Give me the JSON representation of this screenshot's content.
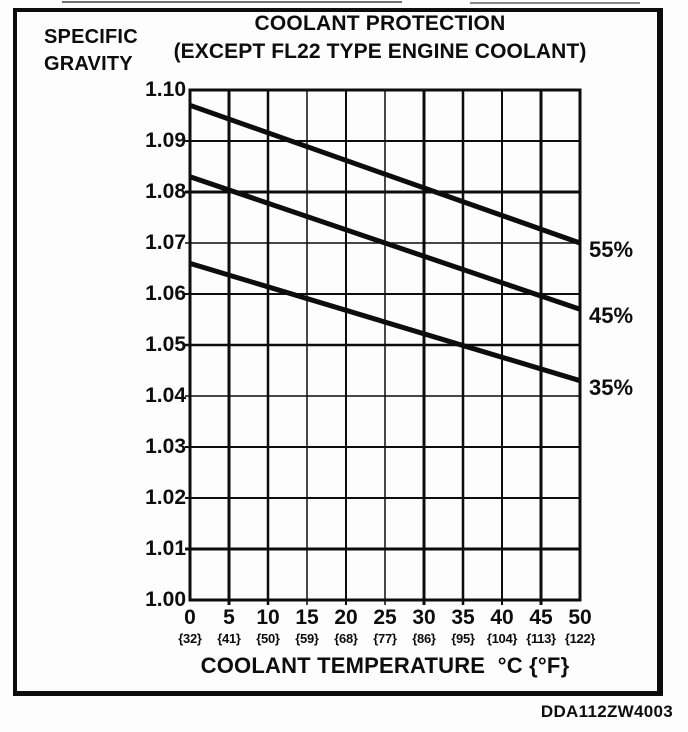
{
  "chart_data": {
    "type": "line",
    "title": "COOLANT PROTECTION",
    "subtitle": "(EXCEPT FL22 TYPE ENGINE COOLANT)",
    "ylabel": "SPECIFIC GRAVITY",
    "xlabel": "COOLANT TEMPERATURE  °C {°F}",
    "xlim": [
      0,
      50
    ],
    "ylim": [
      1.0,
      1.1
    ],
    "grid": true,
    "legend_position": "right-of-line-ends",
    "x_ticks_celsius": [
      0,
      5,
      10,
      15,
      20,
      25,
      30,
      35,
      40,
      45,
      50
    ],
    "x_ticks_fahrenheit": [
      "{32}",
      "{41}",
      "{50}",
      "{59}",
      "{68}",
      "{77}",
      "{86}",
      "{95}",
      "{104}",
      "{113}",
      "{122}"
    ],
    "y_ticks": [
      "1.10",
      "1.09",
      "1.08",
      "1.07",
      "1.06",
      "1.05",
      "1.04",
      "1.03",
      "1.02",
      "1.01",
      "1.00"
    ],
    "series": [
      {
        "name": "55%",
        "points": [
          [
            0,
            1.097
          ],
          [
            50,
            1.07
          ]
        ]
      },
      {
        "name": "45%",
        "points": [
          [
            0,
            1.083
          ],
          [
            50,
            1.057
          ]
        ]
      },
      {
        "name": "35%",
        "points": [
          [
            0,
            1.066
          ],
          [
            50,
            1.043
          ]
        ]
      }
    ]
  },
  "footer": {
    "code": "DDA112ZW4003"
  },
  "colors": {
    "ink": "#0d0d0d",
    "paper": "#fdfdfd"
  }
}
